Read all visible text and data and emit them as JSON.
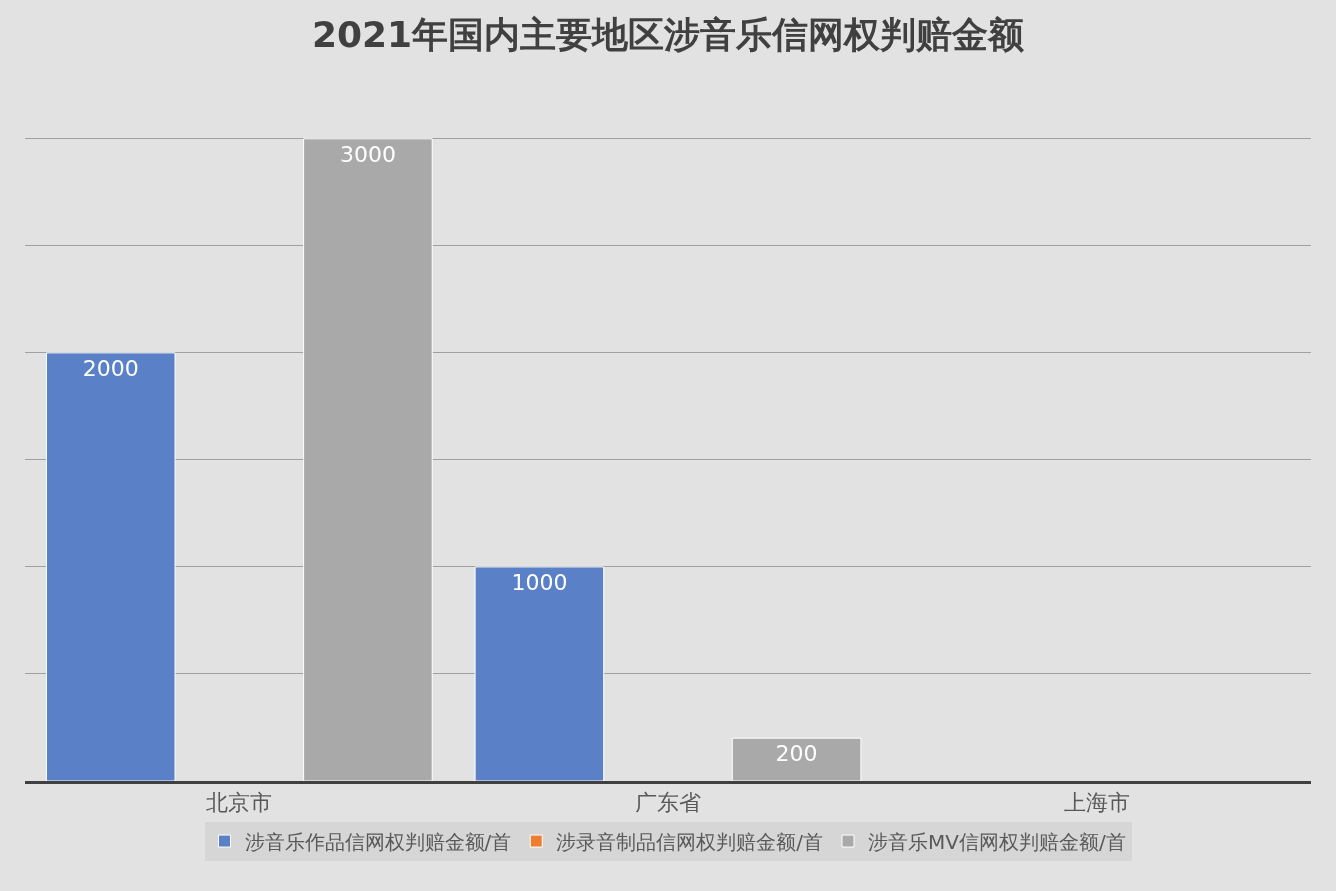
{
  "chart_data": {
    "type": "bar",
    "title": "2021年国内主要地区涉音乐信网权判赔金额",
    "categories": [
      "北京市",
      "广东省",
      "上海市"
    ],
    "series": [
      {
        "name": "涉音乐作品信网权判赔金额/首",
        "color": "#5a80c7",
        "values": [
          2000,
          1000,
          null
        ]
      },
      {
        "name": "涉录音制品信网权判赔金额/首",
        "color": "#ed7d31",
        "values": [
          null,
          null,
          null
        ]
      },
      {
        "name": "涉音乐MV信网权判赔金额/首",
        "color": "#a9a9a9",
        "values": [
          3000,
          200,
          null
        ]
      }
    ],
    "tick_labels": "x",
    "grid": "y",
    "legend": "bottom",
    "data_labels": true
  }
}
